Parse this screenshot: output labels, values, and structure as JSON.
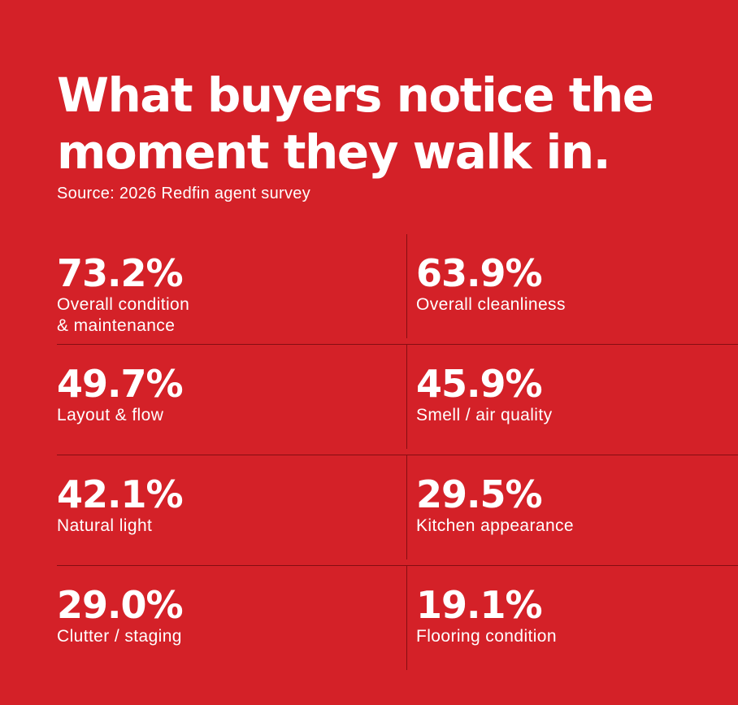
{
  "chart_data": {
    "type": "table",
    "title_lines": [
      "What buyers notice the",
      "moment they walk in."
    ],
    "subtitle": "Source: 2026 Redfin agent survey",
    "unit": "%",
    "items": [
      {
        "value": "73.2%",
        "label_lines": [
          "Overall condition",
          "& maintenance"
        ]
      },
      {
        "value": "63.9%",
        "label_lines": [
          "Overall cleanliness"
        ]
      },
      {
        "value": "49.7%",
        "label_lines": [
          "Layout & flow"
        ]
      },
      {
        "value": "45.9%",
        "label_lines": [
          "Smell / air quality"
        ]
      },
      {
        "value": "42.1%",
        "label_lines": [
          "Natural light"
        ]
      },
      {
        "value": "29.5%",
        "label_lines": [
          "Kitchen appearance"
        ]
      },
      {
        "value": "29.0%",
        "label_lines": [
          "Clutter / staging"
        ]
      },
      {
        "value": "19.1%",
        "label_lines": [
          "Flooring condition"
        ]
      }
    ]
  },
  "colors": {
    "background": "#d42128",
    "text": "#ffffff"
  }
}
